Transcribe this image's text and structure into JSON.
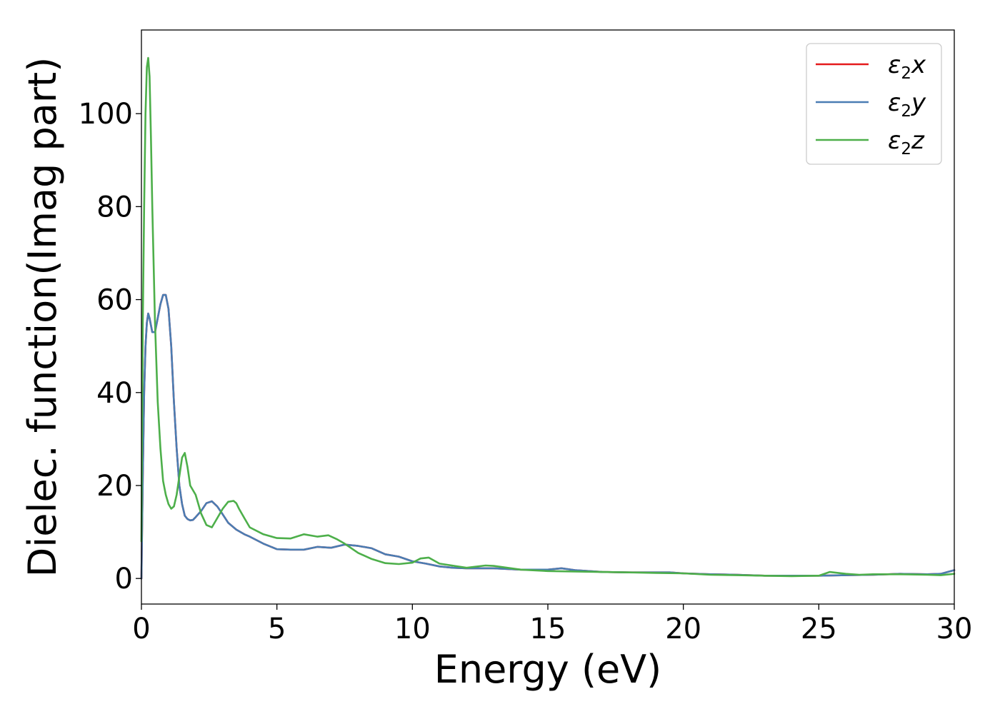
{
  "chart_data": {
    "type": "line",
    "title": "",
    "xlabel": "Energy (eV)",
    "ylabel": "Dielec. function(Imag part)",
    "xlim": [
      0,
      30
    ],
    "ylim": [
      -5.5,
      118
    ],
    "xticks": [
      0,
      5,
      10,
      15,
      20,
      25,
      30
    ],
    "yticks": [
      0,
      20,
      40,
      60,
      80,
      100
    ],
    "grid": false,
    "legend_position": "top-right",
    "series": [
      {
        "name": "ε₂x",
        "legend_base": "ε",
        "legend_sub": "2",
        "legend_var": "x",
        "color": "#e41a1c",
        "x": [
          0,
          0.05,
          0.1,
          0.15,
          0.2,
          0.25,
          0.3,
          0.4,
          0.5,
          0.6,
          0.7,
          0.8,
          0.9,
          1.0,
          1.1,
          1.2,
          1.3,
          1.4,
          1.5,
          1.6,
          1.7,
          1.8,
          1.9,
          2.0,
          2.2,
          2.4,
          2.6,
          2.8,
          3.0,
          3.2,
          3.5,
          3.8,
          4.0,
          4.5,
          5.0,
          5.5,
          6.0,
          6.5,
          7.0,
          7.5,
          8.0,
          8.5,
          9.0,
          9.5,
          10.0,
          10.5,
          11.0,
          11.5,
          12.0,
          13.0,
          14.0,
          15.0,
          15.5,
          16.0,
          17.0,
          18.0,
          19.0,
          19.5,
          20.0,
          21.0,
          22.0,
          23.0,
          24.0,
          25.0,
          26.0,
          27.0,
          28.0,
          29.0,
          29.5,
          30.0
        ],
        "y": [
          0,
          22,
          40,
          50,
          55,
          57,
          56,
          53,
          53,
          56,
          59,
          61,
          61,
          58,
          50,
          38,
          28,
          20,
          16,
          13.5,
          12.8,
          12.5,
          12.6,
          13.2,
          14.5,
          16.2,
          16.6,
          15.5,
          13.8,
          12,
          10.5,
          9.5,
          9,
          7.5,
          6.3,
          6.2,
          6.2,
          6.8,
          6.6,
          7.3,
          7,
          6.5,
          5.2,
          4.7,
          3.7,
          3.2,
          2.6,
          2.3,
          2.2,
          2.2,
          1.9,
          1.9,
          2.2,
          1.8,
          1.4,
          1.3,
          1.3,
          1.3,
          1.1,
          0.9,
          0.8,
          0.6,
          0.6,
          0.6,
          0.7,
          0.8,
          1.0,
          0.9,
          1.0,
          1.8
        ]
      },
      {
        "name": "ε₂y",
        "legend_base": "ε",
        "legend_sub": "2",
        "legend_var": "y",
        "color": "#4a7db3",
        "x": [
          0,
          0.05,
          0.1,
          0.15,
          0.2,
          0.25,
          0.3,
          0.4,
          0.5,
          0.6,
          0.7,
          0.8,
          0.9,
          1.0,
          1.1,
          1.2,
          1.3,
          1.4,
          1.5,
          1.6,
          1.7,
          1.8,
          1.9,
          2.0,
          2.2,
          2.4,
          2.6,
          2.8,
          3.0,
          3.2,
          3.5,
          3.8,
          4.0,
          4.5,
          5.0,
          5.5,
          6.0,
          6.5,
          7.0,
          7.5,
          8.0,
          8.5,
          9.0,
          9.5,
          10.0,
          10.5,
          11.0,
          11.5,
          12.0,
          13.0,
          14.0,
          15.0,
          15.5,
          16.0,
          17.0,
          18.0,
          19.0,
          19.5,
          20.0,
          21.0,
          22.0,
          23.0,
          24.0,
          25.0,
          26.0,
          27.0,
          28.0,
          29.0,
          29.5,
          30.0
        ],
        "y": [
          0,
          22,
          40,
          50,
          55,
          57,
          56,
          53,
          53,
          56,
          59,
          61,
          61,
          58,
          50,
          38,
          28,
          20,
          16,
          13.5,
          12.8,
          12.5,
          12.6,
          13.2,
          14.5,
          16.2,
          16.6,
          15.5,
          13.8,
          12,
          10.5,
          9.5,
          9,
          7.5,
          6.3,
          6.2,
          6.2,
          6.8,
          6.6,
          7.3,
          7,
          6.5,
          5.2,
          4.7,
          3.7,
          3.2,
          2.6,
          2.3,
          2.2,
          2.2,
          1.9,
          1.9,
          2.2,
          1.8,
          1.4,
          1.3,
          1.3,
          1.3,
          1.1,
          0.9,
          0.8,
          0.6,
          0.6,
          0.6,
          0.7,
          0.8,
          1.0,
          0.9,
          1.0,
          1.8
        ]
      },
      {
        "name": "ε₂z",
        "legend_base": "ε",
        "legend_sub": "2",
        "legend_var": "z",
        "color": "#4daf4a",
        "x": [
          0,
          0.05,
          0.1,
          0.15,
          0.2,
          0.25,
          0.3,
          0.35,
          0.4,
          0.5,
          0.6,
          0.7,
          0.8,
          0.9,
          1.0,
          1.1,
          1.2,
          1.3,
          1.4,
          1.5,
          1.6,
          1.7,
          1.8,
          1.9,
          2.0,
          2.1,
          2.2,
          2.4,
          2.6,
          2.8,
          3.0,
          3.2,
          3.4,
          3.5,
          3.6,
          3.8,
          4.0,
          4.5,
          5.0,
          5.5,
          6.0,
          6.5,
          6.9,
          7.2,
          7.5,
          8.0,
          8.5,
          9.0,
          9.5,
          10.0,
          10.3,
          10.6,
          11.0,
          12.0,
          12.7,
          13.0,
          14.0,
          15.0,
          16.0,
          17.0,
          18.0,
          19.0,
          20.0,
          21.0,
          22.0,
          23.0,
          24.0,
          25.0,
          25.4,
          26.0,
          26.5,
          27.0,
          28.0,
          29.0,
          29.5,
          30.0
        ],
        "y": [
          8,
          55,
          80,
          100,
          110,
          112,
          108,
          95,
          80,
          55,
          38,
          28,
          21,
          18,
          16,
          15,
          15.5,
          18,
          22,
          26,
          27,
          24,
          20,
          19,
          18,
          16,
          14,
          11.5,
          11,
          13,
          15,
          16.5,
          16.7,
          16.2,
          15,
          13,
          11,
          9.5,
          8.7,
          8.6,
          9.5,
          9,
          9.3,
          8.5,
          7.5,
          5.5,
          4.2,
          3.3,
          3.1,
          3.4,
          4.3,
          4.5,
          3.2,
          2.3,
          2.8,
          2.7,
          1.9,
          1.6,
          1.5,
          1.4,
          1.3,
          1.2,
          1.1,
          0.8,
          0.7,
          0.6,
          0.5,
          0.6,
          1.4,
          1.0,
          0.8,
          0.9,
          0.9,
          0.8,
          0.7,
          1.0
        ]
      }
    ]
  }
}
